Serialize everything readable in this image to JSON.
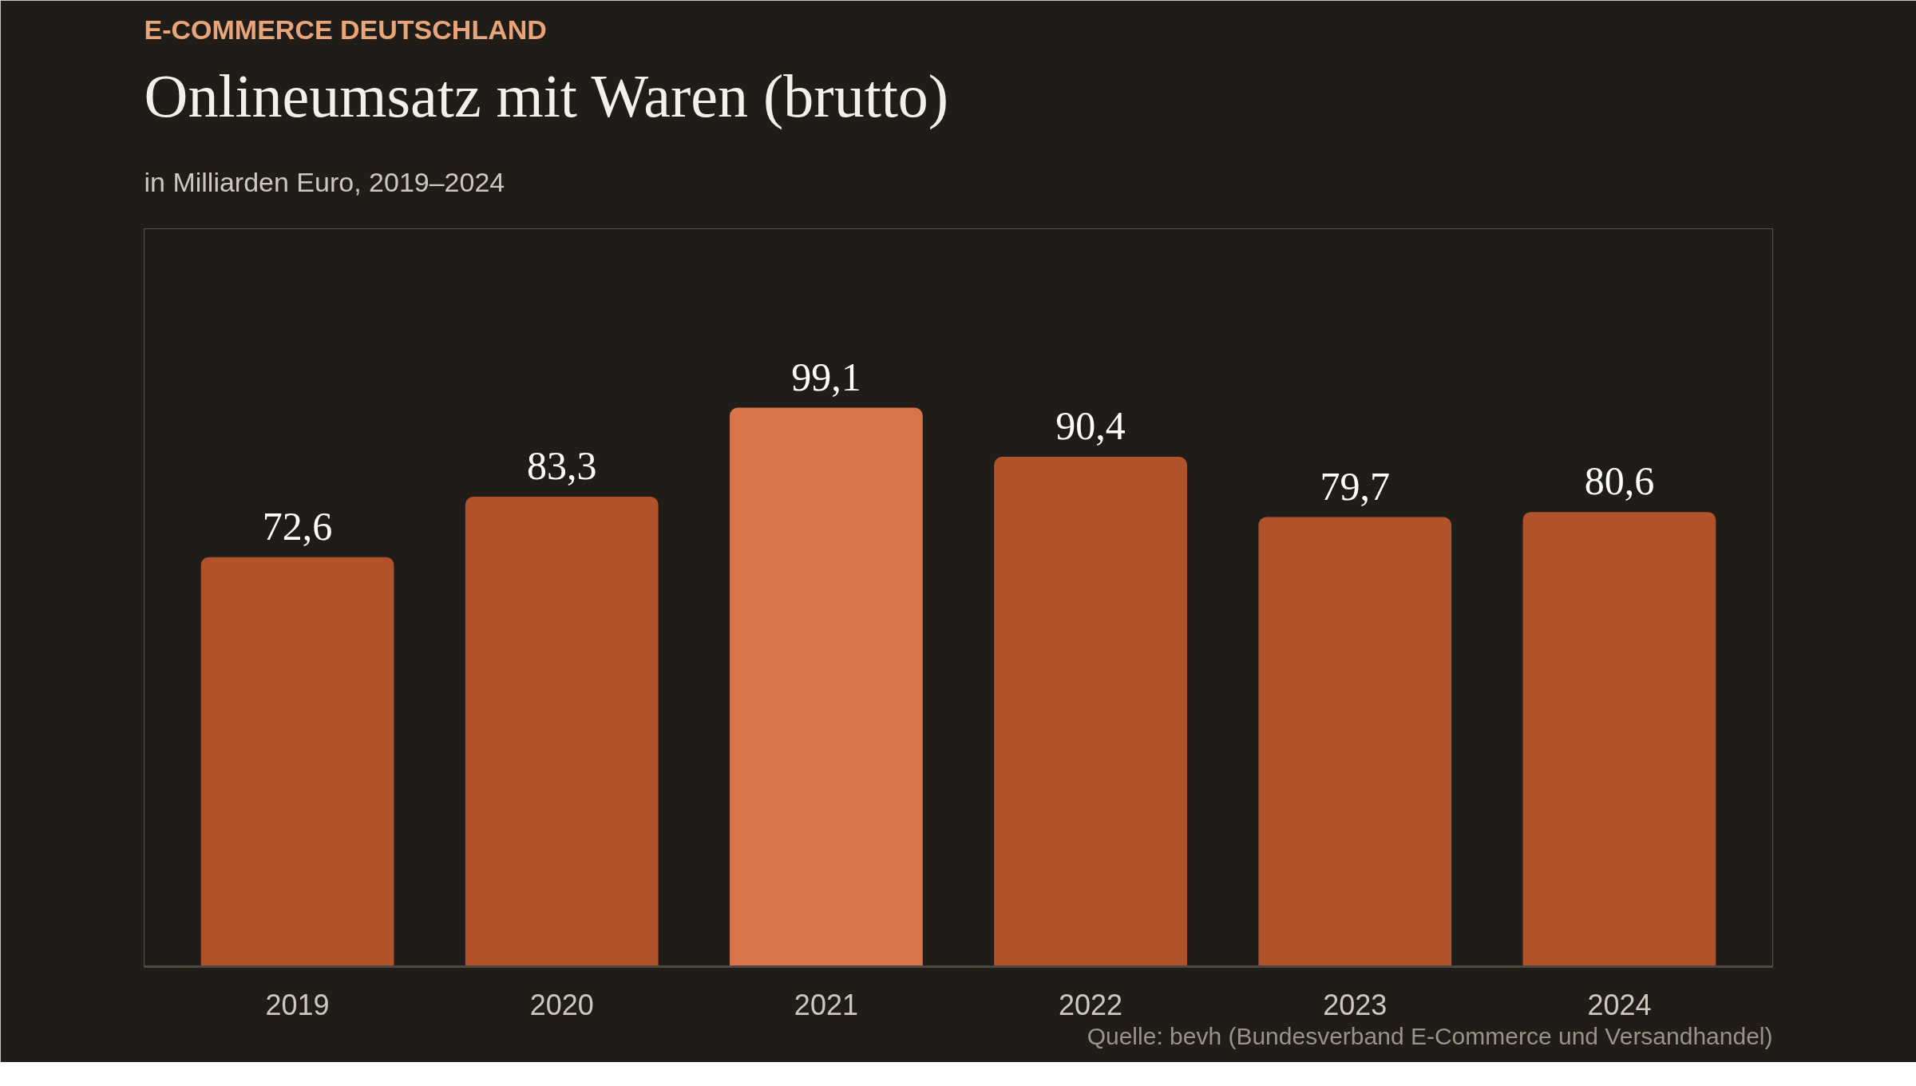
{
  "chart_data": {
    "type": "bar",
    "title": "Onlineumsatz mit Waren (brutto)",
    "subtitle": "in Milliarden Euro, 2019–2024",
    "annotations": [
      "E-COMMERCE DEUTSCHLAND",
      "Quelle: bevh (Bundesverband E-Commerce und Versandhandel)"
    ],
    "categories": [
      "2019",
      "2020",
      "2021",
      "2022",
      "2023",
      "2024"
    ],
    "values": [
      72.6,
      83.3,
      99.1,
      90.4,
      79.7,
      80.6
    ],
    "value_labels": [
      "72,6",
      "83,3",
      "99,1",
      "90,4",
      "79,7",
      "80,6"
    ],
    "colors": [
      "#b1532a",
      "#b1532a",
      "#d8744a",
      "#b1532a",
      "#b1532a",
      "#b1532a"
    ],
    "grid": false
  }
}
